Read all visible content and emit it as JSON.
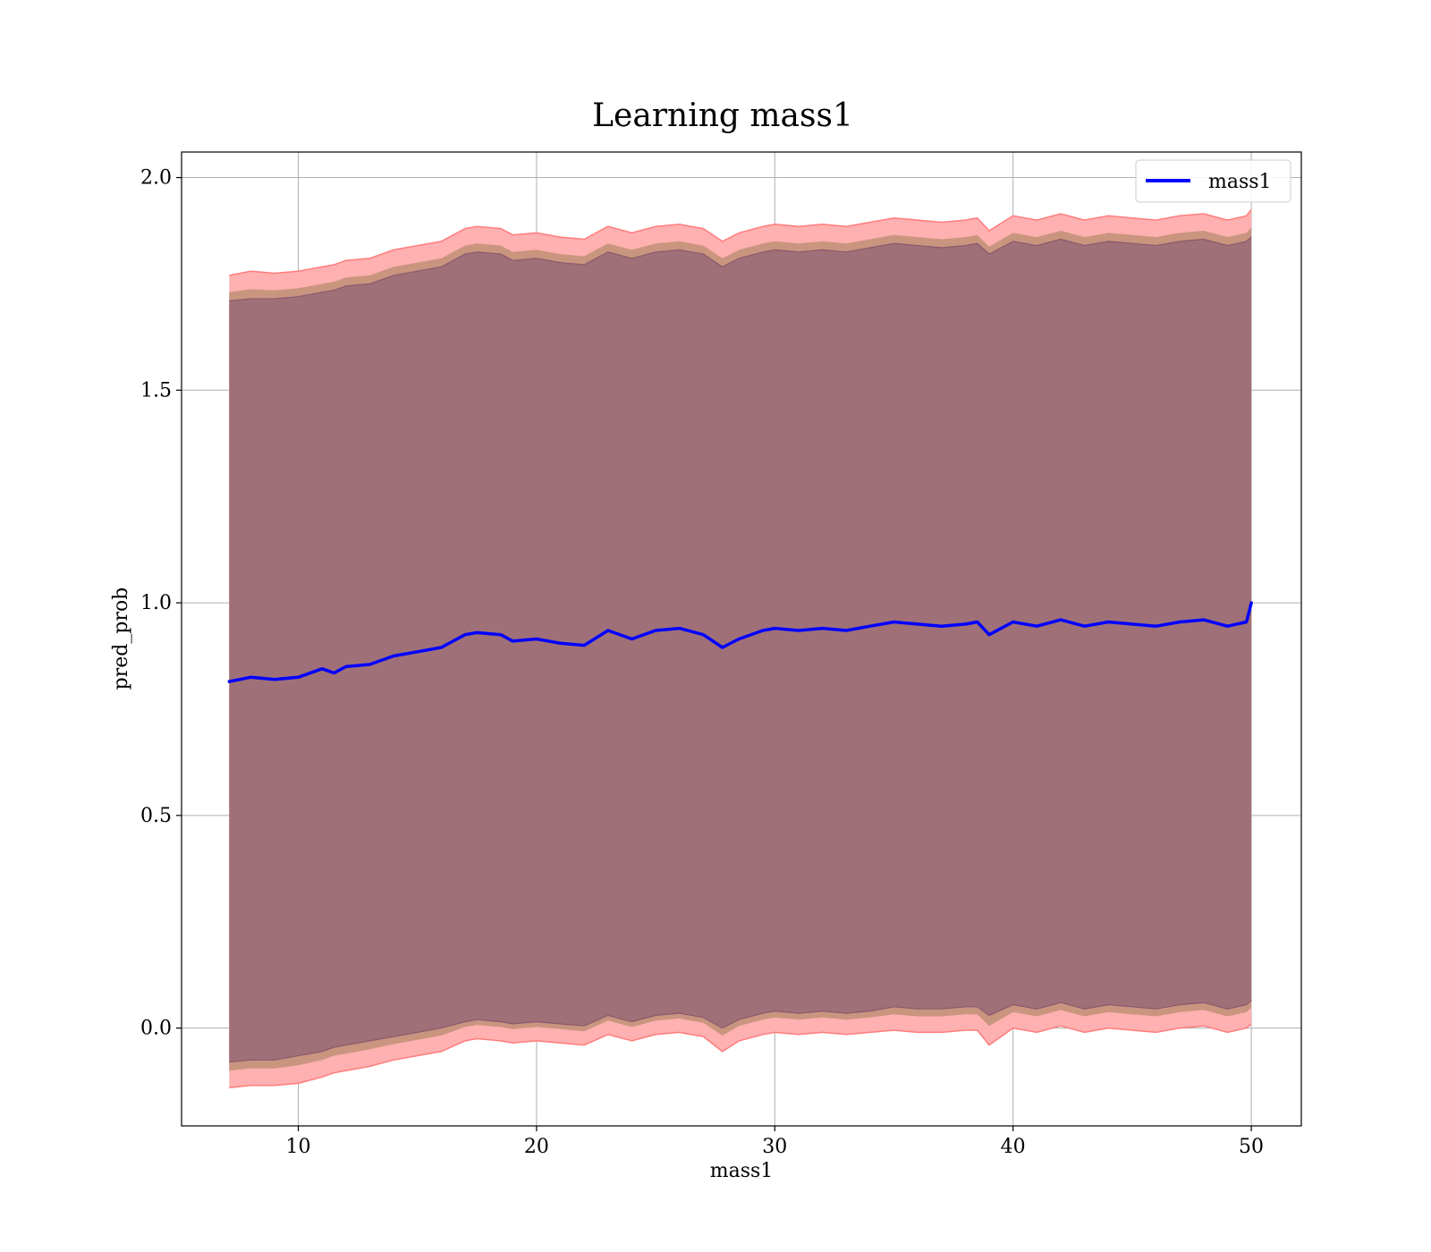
{
  "chart_data": {
    "type": "line",
    "title": "Learning mass1",
    "xlabel": "mass1",
    "ylabel": "pred_prob",
    "xlim": [
      5.1,
      52.1
    ],
    "ylim": [
      -0.23,
      2.06
    ],
    "xticks": [
      10,
      20,
      30,
      40,
      50
    ],
    "yticks": [
      0.0,
      0.5,
      1.0,
      1.5,
      2.0
    ],
    "xtick_labels": [
      "10",
      "20",
      "30",
      "40",
      "50"
    ],
    "ytick_labels": [
      "0.0",
      "0.5",
      "1.0",
      "1.5",
      "2.0"
    ],
    "grid": true,
    "legend": {
      "position": "top-right",
      "entries": [
        "mass1"
      ]
    },
    "colors": {
      "line": "#0000ff",
      "band_outer": "#ffb0b0",
      "band_middle": "#c9957f",
      "band_inner": "#a07078",
      "band_outer_edge": "#ff7d7d",
      "band_inner_edge": "#8a5a6e"
    },
    "series": [
      {
        "name": "mass1",
        "x": [
          7.1,
          8.0,
          9.0,
          10.0,
          11.0,
          11.5,
          12.0,
          13.0,
          14.0,
          15.0,
          16.0,
          17.0,
          17.5,
          18.5,
          19.0,
          20.0,
          21.0,
          22.0,
          23.0,
          24.0,
          25.0,
          26.0,
          27.0,
          27.8,
          28.5,
          29.5,
          30.0,
          31.0,
          32.0,
          33.0,
          34.0,
          35.0,
          36.0,
          37.0,
          38.0,
          38.5,
          39.0,
          40.0,
          41.0,
          42.0,
          43.0,
          44.0,
          45.0,
          46.0,
          47.0,
          48.0,
          49.0,
          49.8,
          50.0
        ],
        "y": [
          0.815,
          0.825,
          0.82,
          0.825,
          0.845,
          0.835,
          0.85,
          0.855,
          0.875,
          0.885,
          0.895,
          0.925,
          0.93,
          0.925,
          0.91,
          0.915,
          0.905,
          0.9,
          0.935,
          0.915,
          0.935,
          0.94,
          0.925,
          0.895,
          0.915,
          0.935,
          0.94,
          0.935,
          0.94,
          0.935,
          0.945,
          0.955,
          0.95,
          0.945,
          0.95,
          0.955,
          0.925,
          0.955,
          0.945,
          0.96,
          0.945,
          0.955,
          0.95,
          0.945,
          0.955,
          0.96,
          0.945,
          0.955,
          1.0
        ],
        "lower_inner": [
          -0.08,
          -0.075,
          -0.075,
          -0.065,
          -0.055,
          -0.045,
          -0.04,
          -0.03,
          -0.02,
          -0.01,
          0.0,
          0.015,
          0.02,
          0.015,
          0.01,
          0.015,
          0.01,
          0.005,
          0.03,
          0.015,
          0.03,
          0.035,
          0.025,
          0.0,
          0.02,
          0.035,
          0.04,
          0.035,
          0.04,
          0.035,
          0.04,
          0.05,
          0.045,
          0.045,
          0.05,
          0.05,
          0.03,
          0.055,
          0.045,
          0.06,
          0.045,
          0.055,
          0.05,
          0.045,
          0.055,
          0.06,
          0.045,
          0.055,
          0.065
        ],
        "lower_outer": [
          -0.14,
          -0.135,
          -0.135,
          -0.13,
          -0.115,
          -0.105,
          -0.1,
          -0.09,
          -0.075,
          -0.065,
          -0.055,
          -0.03,
          -0.025,
          -0.03,
          -0.035,
          -0.03,
          -0.035,
          -0.04,
          -0.015,
          -0.03,
          -0.015,
          -0.01,
          -0.02,
          -0.055,
          -0.03,
          -0.015,
          -0.01,
          -0.015,
          -0.01,
          -0.015,
          -0.01,
          -0.005,
          -0.01,
          -0.01,
          -0.005,
          -0.005,
          -0.04,
          0.0,
          -0.01,
          0.005,
          -0.01,
          0.0,
          -0.005,
          -0.01,
          0.0,
          0.005,
          -0.01,
          0.0,
          0.01
        ],
        "upper_inner": [
          1.71,
          1.715,
          1.715,
          1.72,
          1.73,
          1.735,
          1.745,
          1.75,
          1.77,
          1.78,
          1.79,
          1.82,
          1.825,
          1.82,
          1.805,
          1.81,
          1.8,
          1.795,
          1.825,
          1.81,
          1.825,
          1.83,
          1.82,
          1.79,
          1.81,
          1.825,
          1.83,
          1.825,
          1.83,
          1.825,
          1.835,
          1.845,
          1.84,
          1.835,
          1.84,
          1.845,
          1.82,
          1.85,
          1.84,
          1.855,
          1.84,
          1.85,
          1.845,
          1.84,
          1.85,
          1.855,
          1.84,
          1.85,
          1.86
        ],
        "upper_outer": [
          1.77,
          1.78,
          1.775,
          1.78,
          1.79,
          1.795,
          1.805,
          1.81,
          1.83,
          1.84,
          1.85,
          1.88,
          1.885,
          1.88,
          1.865,
          1.87,
          1.86,
          1.855,
          1.885,
          1.87,
          1.885,
          1.89,
          1.88,
          1.85,
          1.87,
          1.885,
          1.89,
          1.885,
          1.89,
          1.885,
          1.895,
          1.905,
          1.9,
          1.895,
          1.9,
          1.905,
          1.875,
          1.91,
          1.9,
          1.915,
          1.9,
          1.91,
          1.905,
          1.9,
          1.91,
          1.915,
          1.9,
          1.91,
          1.925
        ]
      }
    ]
  }
}
